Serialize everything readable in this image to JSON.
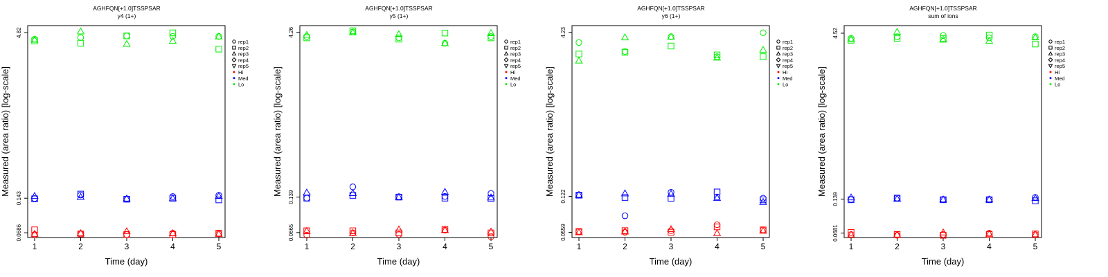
{
  "colors": {
    "Hi": "#ff0000",
    "Med": "#0000ff",
    "Lo": "#00ee00"
  },
  "legend": {
    "reps": [
      {
        "label": "rep1",
        "marker": "circle"
      },
      {
        "label": "rep2",
        "marker": "square"
      },
      {
        "label": "rep3",
        "marker": "triangle-up"
      },
      {
        "label": "rep4",
        "marker": "diamond"
      },
      {
        "label": "rep5",
        "marker": "triangle-down"
      }
    ],
    "groups": [
      {
        "label": "Hi",
        "color_key": "Hi"
      },
      {
        "label": "Med",
        "color_key": "Med"
      },
      {
        "label": "Lo",
        "color_key": "Lo"
      }
    ]
  },
  "chart_data": [
    {
      "type": "scatter",
      "title": "AGHFQN[+1.0]TSSPSAR",
      "subtitle": "y4 (1+)",
      "xlabel": "Time (day)",
      "ylabel": "Measured (area ratio) [log-scale]",
      "yscale": "log",
      "xticks": [
        "1",
        "2",
        "3",
        "4",
        "5"
      ],
      "yticks": [
        {
          "value": 0.0686,
          "label": "0.0686"
        },
        {
          "value": 0.143,
          "label": "0.143"
        },
        {
          "value": 4.82,
          "label": "4.82"
        }
      ],
      "ylim": [
        0.062,
        5.6
      ],
      "legend_position": "right",
      "series": [
        {
          "group": "Hi",
          "rep": "rep1",
          "values": [
            0.066,
            0.067,
            0.066,
            0.068,
            0.067
          ]
        },
        {
          "group": "Hi",
          "rep": "rep2",
          "values": [
            0.073,
            0.067,
            0.066,
            0.066,
            0.068
          ]
        },
        {
          "group": "Hi",
          "rep": "rep3",
          "values": [
            0.067,
            0.068,
            0.071,
            0.068,
            0.067
          ]
        },
        {
          "group": "Med",
          "rep": "rep1",
          "values": [
            0.142,
            0.153,
            0.141,
            0.148,
            0.152
          ]
        },
        {
          "group": "Med",
          "rep": "rep2",
          "values": [
            0.141,
            0.156,
            0.14,
            0.143,
            0.138
          ]
        },
        {
          "group": "Med",
          "rep": "rep3",
          "values": [
            0.15,
            0.147,
            0.142,
            0.143,
            0.15
          ]
        },
        {
          "group": "Lo",
          "rep": "rep1",
          "values": [
            4.2,
            4.35,
            4.5,
            4.45,
            4.45
          ]
        },
        {
          "group": "Lo",
          "rep": "rep2",
          "values": [
            4.05,
            3.85,
            4.5,
            4.8,
            3.4
          ]
        },
        {
          "group": "Lo",
          "rep": "rep3",
          "values": [
            4.15,
            4.95,
            3.8,
            4.05,
            4.45
          ]
        }
      ]
    },
    {
      "type": "scatter",
      "title": "AGHFQN[+1.0]TSSPSAR",
      "subtitle": "y5 (1+)",
      "xlabel": "Time (day)",
      "ylabel": "Measured (area ratio) [log-scale]",
      "yscale": "log",
      "xticks": [
        "1",
        "2",
        "3",
        "4",
        "5"
      ],
      "yticks": [
        {
          "value": 0.0665,
          "label": "0.0665"
        },
        {
          "value": 0.139,
          "label": "0.139"
        },
        {
          "value": 4.26,
          "label": "4.26"
        }
      ],
      "ylim": [
        0.06,
        4.9
      ],
      "legend_position": "right",
      "series": [
        {
          "group": "Hi",
          "rep": "rep1",
          "values": [
            0.063,
            0.066,
            0.064,
            0.07,
            0.061
          ]
        },
        {
          "group": "Hi",
          "rep": "rep2",
          "values": [
            0.069,
            0.069,
            0.066,
            0.071,
            0.066
          ]
        },
        {
          "group": "Hi",
          "rep": "rep3",
          "values": [
            0.069,
            0.066,
            0.071,
            0.07,
            0.068
          ]
        },
        {
          "group": "Med",
          "rep": "rep1",
          "values": [
            0.136,
            0.172,
            0.14,
            0.141,
            0.15
          ]
        },
        {
          "group": "Med",
          "rep": "rep2",
          "values": [
            0.136,
            0.144,
            0.139,
            0.136,
            0.135
          ]
        },
        {
          "group": "Med",
          "rep": "rep3",
          "values": [
            0.153,
            0.151,
            0.139,
            0.155,
            0.138
          ]
        },
        {
          "group": "Lo",
          "rep": "rep1",
          "values": [
            3.9,
            4.3,
            3.8,
            3.4,
            3.9
          ]
        },
        {
          "group": "Lo",
          "rep": "rep2",
          "values": [
            3.8,
            4.4,
            3.7,
            4.2,
            3.8
          ]
        },
        {
          "group": "Lo",
          "rep": "rep3",
          "values": [
            4.05,
            4.25,
            4.1,
            3.4,
            4.2
          ]
        }
      ]
    },
    {
      "type": "scatter",
      "title": "AGHFQN[+1.0]TSSPSAR",
      "subtitle": "y6 (1+)",
      "xlabel": "Time (day)",
      "ylabel": "Measured (area ratio) [log-scale]",
      "yscale": "log",
      "xticks": [
        "1",
        "2",
        "3",
        "4",
        "5"
      ],
      "yticks": [
        {
          "value": 0.0559,
          "label": "0.0559"
        },
        {
          "value": 0.122,
          "label": "0.122"
        },
        {
          "value": 4.23,
          "label": "4.23"
        }
      ],
      "ylim": [
        0.05,
        4.9
      ],
      "legend_position": "right",
      "series": [
        {
          "group": "Hi",
          "rep": "rep1",
          "values": [
            0.057,
            0.056,
            0.058,
            0.066,
            0.059
          ]
        },
        {
          "group": "Hi",
          "rep": "rep2",
          "values": [
            0.057,
            0.058,
            0.056,
            0.063,
            0.059
          ]
        },
        {
          "group": "Hi",
          "rep": "rep3",
          "values": [
            0.056,
            0.057,
            0.06,
            0.055,
            0.058
          ]
        },
        {
          "group": "Med",
          "rep": "rep1",
          "values": [
            0.126,
            0.08,
            0.133,
            0.12,
            0.117
          ]
        },
        {
          "group": "Med",
          "rep": "rep2",
          "values": [
            0.125,
            0.119,
            0.117,
            0.134,
            0.113
          ]
        },
        {
          "group": "Med",
          "rep": "rep3",
          "values": [
            0.126,
            0.13,
            0.129,
            0.118,
            0.108
          ]
        },
        {
          "group": "Lo",
          "rep": "rep1",
          "values": [
            3.4,
            2.8,
            3.85,
            2.5,
            4.2
          ]
        },
        {
          "group": "Lo",
          "rep": "rep2",
          "values": [
            2.65,
            2.75,
            3.15,
            2.6,
            2.5
          ]
        },
        {
          "group": "Lo",
          "rep": "rep3",
          "values": [
            2.3,
            3.8,
            3.85,
            2.45,
            2.9
          ]
        }
      ]
    },
    {
      "type": "scatter",
      "title": "AGHFQN[+1.0]TSSPSAR",
      "subtitle": "sum of ions",
      "xlabel": "Time (day)",
      "ylabel": "Measured (area ratio) [log-scale]",
      "yscale": "log",
      "xticks": [
        "1",
        "2",
        "3",
        "4",
        "5"
      ],
      "yticks": [
        {
          "value": 0.0681,
          "label": "0.0681"
        },
        {
          "value": 0.139,
          "label": "0.139"
        },
        {
          "value": 4.52,
          "label": "4.52"
        }
      ],
      "ylim": [
        0.062,
        5.3
      ],
      "legend_position": "right",
      "series": [
        {
          "group": "Hi",
          "rep": "rep1",
          "values": [
            0.066,
            0.065,
            0.066,
            0.068,
            0.066
          ]
        },
        {
          "group": "Hi",
          "rep": "rep2",
          "values": [
            0.069,
            0.066,
            0.065,
            0.066,
            0.067
          ]
        },
        {
          "group": "Hi",
          "rep": "rep3",
          "values": [
            0.066,
            0.066,
            0.069,
            0.067,
            0.066
          ]
        },
        {
          "group": "Med",
          "rep": "rep1",
          "values": [
            0.138,
            0.142,
            0.138,
            0.138,
            0.144
          ]
        },
        {
          "group": "Med",
          "rep": "rep2",
          "values": [
            0.137,
            0.142,
            0.137,
            0.137,
            0.134
          ]
        },
        {
          "group": "Med",
          "rep": "rep3",
          "values": [
            0.144,
            0.14,
            0.138,
            0.138,
            0.142
          ]
        },
        {
          "group": "Lo",
          "rep": "rep1",
          "values": [
            4.05,
            4.2,
            4.3,
            4.1,
            4.2
          ]
        },
        {
          "group": "Lo",
          "rep": "rep2",
          "values": [
            3.9,
            4.05,
            4.05,
            4.35,
            3.6
          ]
        },
        {
          "group": "Lo",
          "rep": "rep3",
          "values": [
            4.0,
            4.65,
            3.95,
            3.85,
            4.15
          ]
        }
      ]
    }
  ]
}
